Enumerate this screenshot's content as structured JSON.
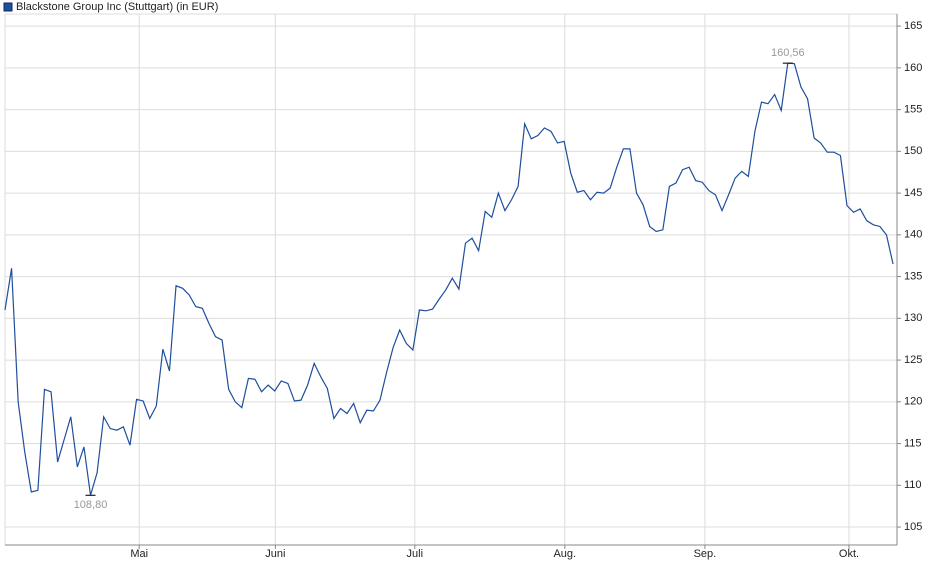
{
  "chart_data": {
    "type": "line",
    "title": "Blackstone Group Inc (Stuttgart) (in EUR)",
    "x": [
      0,
      1,
      2,
      3,
      4,
      5,
      6,
      7,
      8,
      9,
      10,
      11,
      12,
      13,
      14,
      15,
      16,
      17,
      18,
      19,
      20,
      21,
      22,
      23,
      24,
      25,
      26,
      27,
      28,
      29,
      30,
      31,
      32,
      33,
      34,
      35,
      36,
      37,
      38,
      39,
      40,
      41,
      42,
      43,
      44,
      45,
      46,
      47,
      48,
      49,
      50,
      51,
      52,
      53,
      54,
      55,
      56,
      57,
      58,
      59,
      60,
      61,
      62,
      63,
      64,
      65,
      66,
      67,
      68,
      69,
      70,
      71,
      72,
      73,
      74,
      75,
      76,
      77,
      78,
      79,
      80,
      81,
      82,
      83,
      84,
      85,
      86,
      87,
      88,
      89,
      90,
      91,
      92,
      93,
      94,
      95,
      96,
      97,
      98,
      99,
      100,
      101,
      102,
      103,
      104,
      105,
      106,
      107,
      108,
      109,
      110,
      111,
      112,
      113,
      114,
      115,
      116,
      117,
      118,
      119,
      120,
      121,
      122,
      123,
      124,
      125,
      126,
      127,
      128,
      129,
      130,
      131,
      132,
      133,
      134,
      135
    ],
    "series": [
      {
        "name": "Blackstone Group Inc (Stuttgart) (in EUR)",
        "color": "#1f4e9c",
        "values": [
          131,
          136,
          120,
          114,
          109.2,
          109.4,
          121.5,
          121.2,
          112.8,
          115.5,
          118.2,
          112.2,
          114.6,
          108.8,
          111.5,
          118.2,
          116.8,
          116.6,
          117,
          114.8,
          120.3,
          120.1,
          118,
          119.5,
          126.3,
          123.7,
          133.9,
          133.6,
          132.8,
          131.4,
          131.2,
          129.4,
          127.8,
          127.4,
          121.5,
          120,
          119.3,
          122.8,
          122.7,
          121.2,
          122,
          121.3,
          122.5,
          122.2,
          120.1,
          120.2,
          122,
          124.6,
          123,
          121.6,
          118,
          119.2,
          118.6,
          119.8,
          117.5,
          119,
          118.9,
          120.2,
          123.5,
          126.5,
          128.6,
          127,
          126.2,
          131,
          130.9,
          131.1,
          132.3,
          133.4,
          134.8,
          133.5,
          139,
          139.6,
          138.1,
          142.8,
          142.1,
          145,
          142.9,
          144.2,
          145.8,
          153.3,
          151.5,
          151.9,
          152.8,
          152.4,
          151,
          151.2,
          147.4,
          145.1,
          145.3,
          144.2,
          145.1,
          145,
          145.6,
          148.1,
          150.3,
          150.3,
          145,
          143.6,
          141,
          140.4,
          140.6,
          145.8,
          146.2,
          147.8,
          148.1,
          146.5,
          146.3,
          145.3,
          144.8,
          142.9,
          144.8,
          146.8,
          147.6,
          147,
          152.4,
          155.9,
          155.7,
          156.8,
          154.9,
          160.56,
          160.5,
          157.7,
          156.3,
          151.6,
          151,
          149.9,
          149.9,
          149.5,
          143.5,
          142.7,
          143.1,
          141.7,
          141.2,
          141,
          140,
          136.5
        ]
      }
    ],
    "annotations": [
      {
        "label": "160,56",
        "x": 119,
        "y": 160.56
      },
      {
        "label": "108,80",
        "x": 13,
        "y": 108.8
      }
    ],
    "xlim": [
      0,
      135.6
    ],
    "xticks": [
      {
        "value": 20.4,
        "label": "Mai"
      },
      {
        "value": 41.1,
        "label": "Juni"
      },
      {
        "value": 62.3,
        "label": "Juli"
      },
      {
        "value": 85.1,
        "label": "Aug."
      },
      {
        "value": 106.4,
        "label": "Sep."
      },
      {
        "value": 128.3,
        "label": "Okt."
      }
    ],
    "ylim": [
      102.85,
      166.45
    ],
    "yticks": [
      105,
      110,
      115,
      120,
      125,
      130,
      135,
      140,
      145,
      150,
      155,
      160,
      165
    ],
    "grid": true
  }
}
